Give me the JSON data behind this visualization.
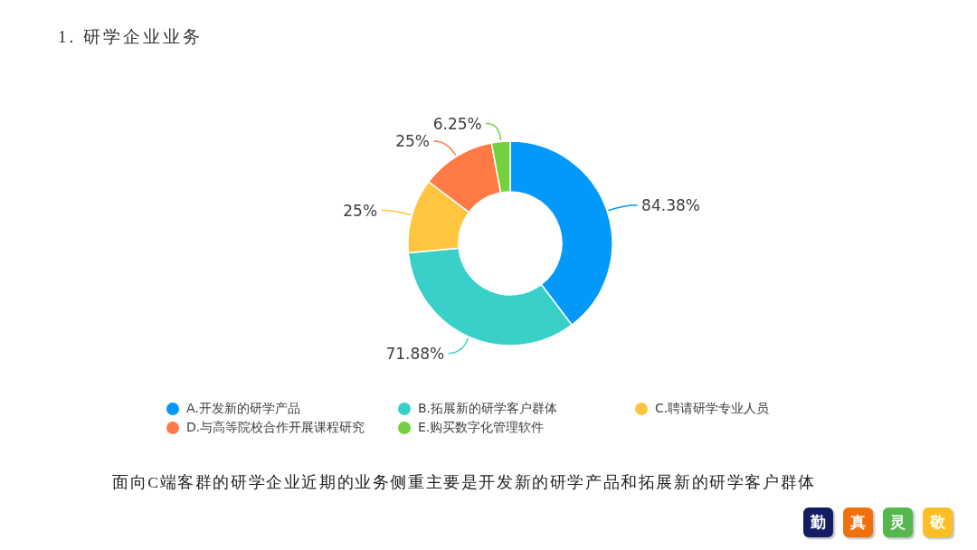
{
  "chart_data": {
    "type": "donut",
    "title": "1. 研学企业业务",
    "categories": [
      "A.开发新的研学产品",
      "B.拓展新的研学客户群体",
      "C.聘请研学专业人员",
      "D.与高等院校合作开展课程研究",
      "E.购买数字化管理软件"
    ],
    "values": [
      84.38,
      71.88,
      25,
      25,
      6.25
    ],
    "colors": [
      "#0399fb",
      "#38d0c9",
      "#ffc53f",
      "#ff7a45",
      "#73d13d"
    ],
    "value_labels": [
      "84.38%",
      "71.88%",
      "25%",
      "25%",
      "6.25%"
    ],
    "legend": "bottom",
    "annotations": [
      "面向C端客群的研学企业近期的业务侧重主要是开发新的研学产品和拓展新的研学客户群体",
      "勤",
      "真",
      "灵",
      "敬"
    ]
  }
}
